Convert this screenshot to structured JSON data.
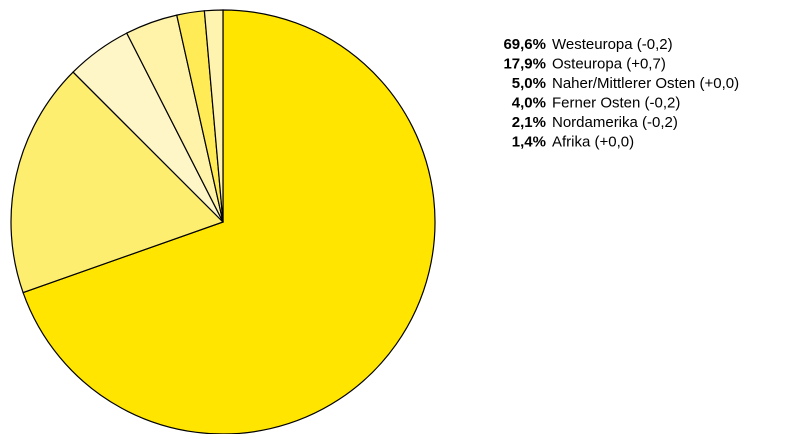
{
  "chart_data": {
    "type": "pie",
    "categories": [
      "Westeuropa (-0,2)",
      "Osteuropa (+0,7)",
      "Naher/Mittlerer Osten (+0,0)",
      "Ferner Osten (-0,2)",
      "Nordamerika (-0,2)",
      "Afrika (+0,0)"
    ],
    "values": [
      69.6,
      17.9,
      5.0,
      4.0,
      2.1,
      1.4
    ],
    "value_labels": [
      "69,6%",
      "17,9%",
      "5,0%",
      "4,0%",
      "2,1%",
      "1,4%"
    ],
    "colors": [
      "#ffe500",
      "#fdee70",
      "#fef6c6",
      "#fef3a8",
      "#ffeb55",
      "#fff3b0"
    ]
  }
}
